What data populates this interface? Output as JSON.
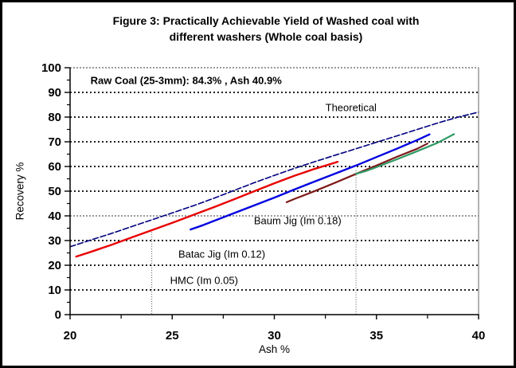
{
  "figure": {
    "title_line1": "Figure 3: Practically Achievable Yield of Washed coal with",
    "title_line2": "different washers (Whole coal basis)",
    "background": "#ffffff",
    "border_color": "#000000"
  },
  "chart_data": {
    "type": "line",
    "title": "Figure 3: Practically Achievable Yield of Washed coal with different washers (Whole coal basis)",
    "xlabel": "Ash %",
    "ylabel": "Recovery %",
    "xlim": [
      20,
      40
    ],
    "ylim": [
      0,
      100
    ],
    "x_major_ticks": [
      20,
      25,
      30,
      35,
      40
    ],
    "x_minor_ticks": [
      22.5,
      27.5,
      32.5,
      37.5
    ],
    "y_major_ticks": [
      0,
      10,
      20,
      30,
      40,
      50,
      60,
      70,
      80,
      90,
      100
    ],
    "y_minor_ticks": [
      5,
      15,
      25,
      35,
      45,
      55,
      65,
      75,
      85,
      95
    ],
    "grid": {
      "y_dotted_bold": [
        10,
        20,
        30,
        50,
        60,
        70,
        80,
        90
      ],
      "y_dotted_fine": [
        40,
        100
      ],
      "x_droplines": [
        {
          "x": 24,
          "y_top": 34.5
        },
        {
          "x": 34,
          "y_top": 58.5
        }
      ]
    },
    "annotations": [
      {
        "id": "raw-coal-note",
        "text": "Raw Coal (25-3mm): 84.3% , Ash 40.9%",
        "x": 21.0,
        "y": 95,
        "bold": true
      },
      {
        "id": "theoretical-label",
        "text": "Theoretical",
        "x": 32.5,
        "y": 84,
        "bold": false
      },
      {
        "id": "baum-jig-label",
        "text": "Baum Jig (Im 0.18)",
        "x": 29.0,
        "y": 38,
        "bold": false
      },
      {
        "id": "batac-jig-label",
        "text": "Batac Jig (Im 0.12)",
        "x": 25.3,
        "y": 24.5,
        "bold": false
      },
      {
        "id": "hmc-label",
        "text": "HMC (Im 0.05)",
        "x": 24.9,
        "y": 14,
        "bold": false
      }
    ],
    "series": [
      {
        "name": "theoretical",
        "color": "#00007F",
        "dash": "7,3",
        "width": 1.6,
        "points": [
          [
            20,
            27.5
          ],
          [
            21,
            30.2
          ],
          [
            22,
            32.8
          ],
          [
            23,
            35.6
          ],
          [
            24,
            38.4
          ],
          [
            25,
            41.2
          ],
          [
            26,
            44.0
          ],
          [
            27,
            47.0
          ],
          [
            28,
            50.2
          ],
          [
            29,
            53.4
          ],
          [
            30,
            56.4
          ],
          [
            31,
            59.3
          ],
          [
            32,
            62.0
          ],
          [
            33,
            64.6
          ],
          [
            34,
            67.2
          ],
          [
            35,
            69.8
          ],
          [
            36,
            72.4
          ],
          [
            37,
            75.0
          ],
          [
            38,
            77.6
          ],
          [
            39,
            80.0
          ],
          [
            40,
            82.0
          ]
        ]
      },
      {
        "name": "washer-curve-red",
        "color": "#E80000",
        "dash": "",
        "width": 2.4,
        "points": [
          [
            20.3,
            23.5
          ],
          [
            21,
            25.4
          ],
          [
            22,
            28.2
          ],
          [
            23,
            31.2
          ],
          [
            24,
            34.2
          ],
          [
            25,
            37.2
          ],
          [
            26,
            40.3
          ],
          [
            27,
            43.4
          ],
          [
            28,
            46.6
          ],
          [
            29,
            49.9
          ],
          [
            30,
            53.2
          ],
          [
            31,
            56.3
          ],
          [
            32,
            59.1
          ],
          [
            33,
            61.6
          ],
          [
            33.1,
            61.9
          ]
        ]
      },
      {
        "name": "washer-curve-blue",
        "color": "#0000E0",
        "dash": "",
        "width": 2.4,
        "points": [
          [
            25.9,
            34.5
          ],
          [
            26.5,
            36.2
          ],
          [
            27,
            37.8
          ],
          [
            28,
            41.0
          ],
          [
            29,
            44.2
          ],
          [
            30,
            47.4
          ],
          [
            31,
            50.7
          ],
          [
            32,
            54.0
          ],
          [
            33,
            57.2
          ],
          [
            34,
            60.4
          ],
          [
            35,
            63.8
          ],
          [
            36,
            67.2
          ],
          [
            37,
            70.7
          ],
          [
            37.6,
            73.0
          ]
        ]
      },
      {
        "name": "washer-curve-dark-red",
        "color": "#7E1A1A",
        "dash": "",
        "width": 2.2,
        "points": [
          [
            30.6,
            45.5
          ],
          [
            31,
            46.9
          ],
          [
            32,
            50.1
          ],
          [
            33,
            53.5
          ],
          [
            34,
            57.0
          ],
          [
            35,
            60.4
          ],
          [
            36,
            63.9
          ],
          [
            37,
            67.2
          ],
          [
            37.5,
            69.3
          ]
        ]
      },
      {
        "name": "washer-curve-green",
        "color": "#2F9A66",
        "dash": "",
        "width": 2.2,
        "points": [
          [
            34,
            57.0
          ],
          [
            34.5,
            58.2
          ],
          [
            35,
            59.7
          ],
          [
            36,
            62.9
          ],
          [
            37,
            66.2
          ],
          [
            38,
            69.6
          ],
          [
            38.8,
            73.1
          ]
        ]
      }
    ]
  }
}
